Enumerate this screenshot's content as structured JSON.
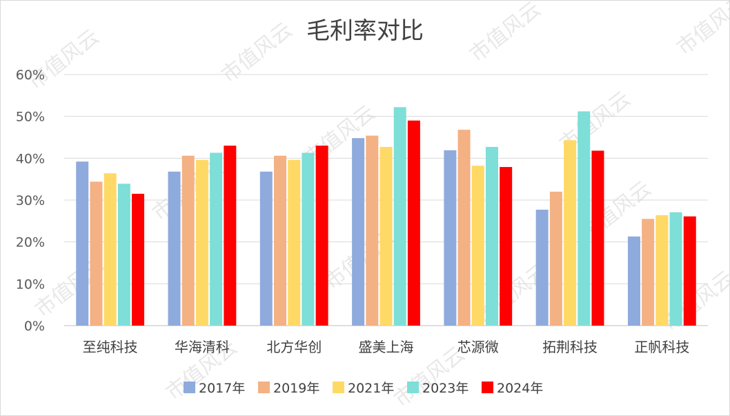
{
  "chart_data": {
    "type": "bar",
    "title": "毛利率对比",
    "xlabel": "",
    "ylabel": "",
    "ylim": [
      0,
      60
    ],
    "yticks": [
      "0%",
      "10%",
      "20%",
      "30%",
      "40%",
      "50%",
      "60%"
    ],
    "grid": true,
    "legend_position": "bottom",
    "categories": [
      "至纯科技",
      "华海清科",
      "北方华创",
      "盛美上海",
      "芯源微",
      "拓荆科技",
      "正帆科技"
    ],
    "series": [
      {
        "name": "2017年",
        "color": "#8FAADC",
        "values": [
          39.2,
          36.8,
          36.8,
          44.8,
          41.9,
          27.7,
          21.3
        ]
      },
      {
        "name": "2019年",
        "color": "#F4B183",
        "values": [
          34.4,
          40.6,
          40.6,
          45.4,
          46.8,
          32.0,
          25.5
        ]
      },
      {
        "name": "2021年",
        "color": "#FFD966",
        "values": [
          36.4,
          39.6,
          39.6,
          42.7,
          38.2,
          44.3,
          26.4
        ]
      },
      {
        "name": "2023年",
        "color": "#7DDFD7",
        "values": [
          33.9,
          41.3,
          41.3,
          52.2,
          42.7,
          51.2,
          27.1
        ]
      },
      {
        "name": "2024年",
        "color": "#FF0000",
        "values": [
          31.5,
          43.0,
          43.0,
          49.0,
          37.9,
          41.8,
          26.1
        ]
      }
    ]
  },
  "watermark": "市值风云"
}
